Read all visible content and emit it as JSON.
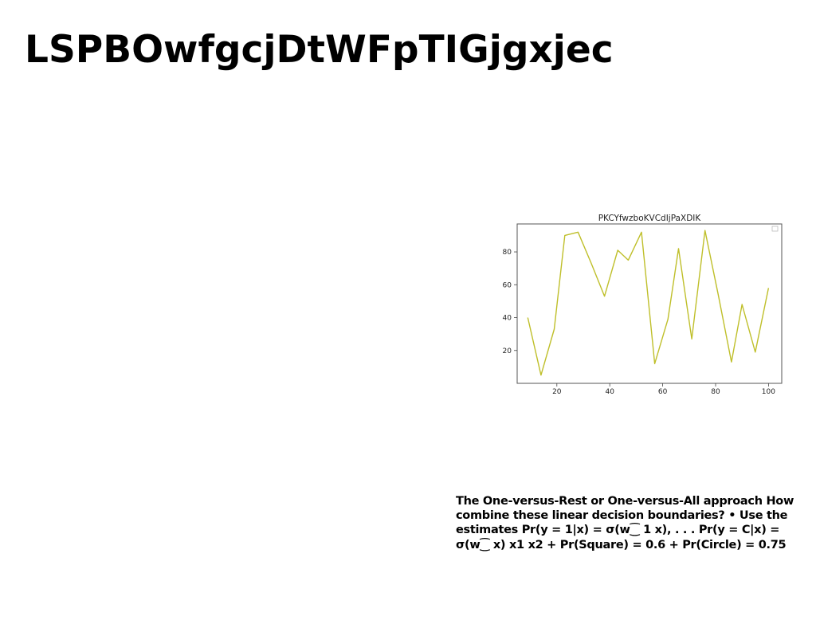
{
  "slide": {
    "title": "LSPBOwfgcjDtWFpTIGjgxjec",
    "body_text": "The One-versus-Rest or One-versus-All approach How combine these linear decision boundaries? • Use the estimates Pr(y = 1|x) = σ(w⁐ 1 x), . . . Pr(y = C|x) = σ(w⁐ x) x1 x2 + Pr(Square) = 0.6 + Pr(Circle) = 0.75"
  },
  "chart_data": {
    "type": "line",
    "title": "PKCYfwzboKVCdIjPaXDIK",
    "xlabel": "",
    "ylabel": "",
    "xlim": [
      5,
      105
    ],
    "ylim": [
      0,
      97
    ],
    "xticks": [
      20,
      40,
      60,
      80,
      100
    ],
    "yticks": [
      20,
      40,
      60,
      80
    ],
    "grid": false,
    "legend": "top-right",
    "series": [
      {
        "color": "#bfbf2a",
        "x": [
          9,
          14,
          19,
          23,
          28,
          33,
          38,
          43,
          47,
          52,
          57,
          62,
          66,
          71,
          76,
          81,
          86,
          90,
          95,
          100
        ],
        "y": [
          40,
          5,
          33,
          90,
          92,
          73,
          53,
          81,
          75,
          92,
          12,
          39,
          82,
          27,
          93,
          54,
          13,
          48,
          19,
          58
        ]
      }
    ]
  }
}
